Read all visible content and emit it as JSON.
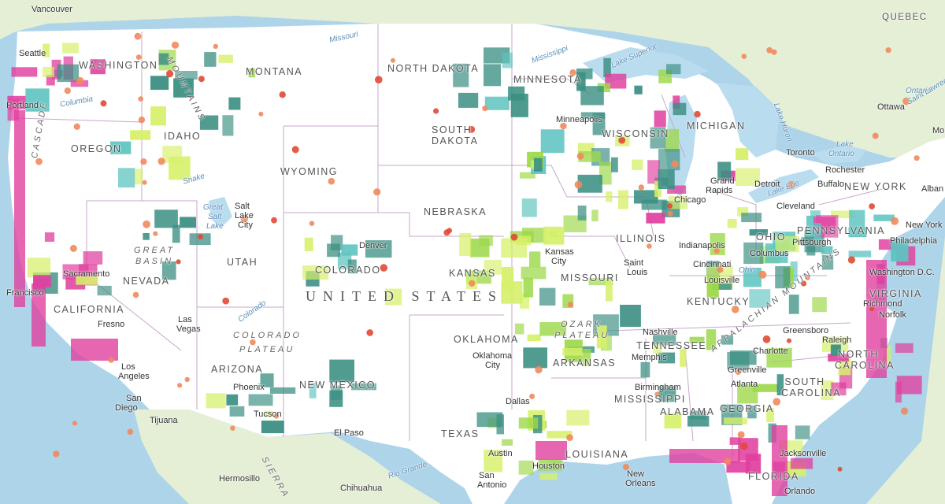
{
  "colors": {
    "ocean": "#aed4ea",
    "land_us": "#ffffff",
    "land_other": "#e5efd6",
    "lakes": "#b9dcef",
    "lime": "#d6f06a",
    "green": "#9dd84a",
    "teal": "#3b8f83",
    "cyan": "#5fc4c0",
    "magenta": "#e0409f",
    "orange_dot": "#f08a5d",
    "red_dot": "#e04a35"
  },
  "labels": {
    "country": "UNITED STATES",
    "quebec": "QUEBEC",
    "ontario": "Ontario",
    "states": {
      "washington": "WASHINGTON",
      "montana": "MONTANA",
      "north_dakota": "NORTH DAKOTA",
      "minnesota": "MINNESOTA",
      "south_dakota": "SOUTH DAKOTA",
      "oregon": "OREGON",
      "idaho": "IDAHO",
      "wyoming": "WYOMING",
      "wisconsin": "WISCONSIN",
      "michigan": "MICHIGAN",
      "nebraska": "NEBRASKA",
      "nevada": "NEVADA",
      "utah": "UTAH",
      "colorado": "COLORADO",
      "california": "CALIFORNIA",
      "kansas": "KANSAS",
      "missouri": "MISSOURI",
      "illinois": "ILLINOIS",
      "ohio": "OHIO",
      "pennsylvania": "PENNSYLVANIA",
      "new_york": "NEW YORK",
      "kentucky": "KENTUCKY",
      "virginia": "VIRGINIA",
      "tennessee": "TENNESSEE",
      "north_carolina": "NORTH CAROLINA",
      "south_carolina": "SOUTH CAROLINA",
      "oklahoma": "OKLAHOMA",
      "arkansas": "ARKANSAS",
      "arizona": "ARIZONA",
      "new_mexico": "NEW MEXICO",
      "texas": "TEXAS",
      "alabama": "ALABAMA",
      "georgia": "GEORGIA",
      "louisiana": "LOUISIANA",
      "florida": "FLORIDA",
      "mississippi": "MISSISSIPPI"
    },
    "regions": {
      "great_basin_1": "GREAT",
      "great_basin_2": "BASIN",
      "colorado_plateau_1": "COLORADO",
      "colorado_plateau_2": "PLATEAU",
      "ozark_1": "OZARK",
      "ozark_2": "PLATEAU",
      "rocky_mtn": "MOUNTAINS",
      "appalachian": "APPALACHIAN MOUNTAINS",
      "cascade": "CASCADE",
      "sierra": "SIERRA"
    },
    "cities": {
      "vancouver": "Vancouver",
      "seattle": "Seattle",
      "portland": "Portland",
      "sacramento": "Sacramento",
      "san_francisco": "Francisco",
      "fresno": "Fresno",
      "los_angeles_1": "Los",
      "los_angeles_2": "Angeles",
      "san_diego_1": "San",
      "san_diego_2": "Diego",
      "tijuana": "Tijuana",
      "las_vegas_1": "Las",
      "las_vegas_2": "Vegas",
      "salt_lake_1": "Salt",
      "salt_lake_2": "Lake",
      "salt_lake_3": "City",
      "phoenix": "Phoenix",
      "tucson": "Tucson",
      "el_paso": "El Paso",
      "hermosillo": "Hermosillo",
      "chihuahua": "Chihuahua",
      "denver": "Denver",
      "minneapolis": "Minneapolis",
      "kansas_city_1": "Kansas",
      "kansas_city_2": "City",
      "oklahoma_city_1": "Oklahoma",
      "oklahoma_city_2": "City",
      "dallas": "Dallas",
      "austin": "Austin",
      "san_antonio_1": "San",
      "san_antonio_2": "Antonio",
      "houston": "Houston",
      "new_orleans_1": "New",
      "new_orleans_2": "Orleans",
      "memphis": "Memphis",
      "nashville": "Nashville",
      "birmingham": "Birmingham",
      "atlanta": "Atlanta",
      "jacksonville": "Jacksonville",
      "orlando": "Orlando",
      "st_louis_1": "Saint",
      "st_louis_2": "Louis",
      "chicago": "Chicago",
      "detroit": "Detroit",
      "grand_rapids_1": "Grand",
      "grand_rapids_2": "Rapids",
      "toronto": "Toronto",
      "ottawa": "Ottawa",
      "rochester": "Rochester",
      "buffalo": "Buffalo",
      "albany": "Alban",
      "cleveland": "Cleveland",
      "pittsburgh": "Pittsburgh",
      "columbus": "Columbus",
      "cincinnati": "Cincinnati",
      "louisville": "Louisville",
      "indianapolis": "Indianapolis",
      "washington_dc": "Washington D.C.",
      "philadelphia": "Philadelphia",
      "new_york": "New York",
      "richmond": "Richmond",
      "norfolk": "Norfolk",
      "raleigh": "Raleigh",
      "greensboro": "Greensboro",
      "charlotte": "Charlotte",
      "greenville": "Greenville",
      "montreal": "Montre"
    },
    "water": {
      "missouri": "Missouri",
      "mississippi": "Mississippi",
      "lake_superior": "Lake Superior",
      "lake_huron": "Lake Huron",
      "lake_ontario_1": "Lake",
      "lake_ontario_2": "Ontario",
      "lake_erie": "Lake Erie",
      "columbia": "Columbia",
      "snake": "Snake",
      "great_salt_1": "Great",
      "great_salt_2": "Salt",
      "great_salt_3": "Lake",
      "colorado_river": "Colorado",
      "rio_grande": "Rio Grande",
      "ohio_river": "Ohio",
      "st_lawrence": "Saint Lawrence"
    }
  }
}
